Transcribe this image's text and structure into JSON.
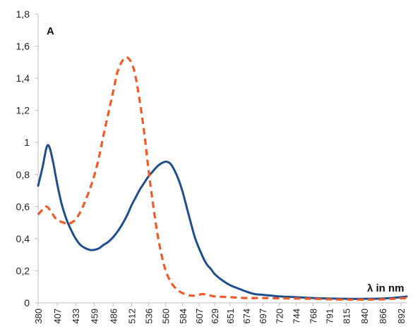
{
  "chart_data": {
    "type": "line",
    "panel_label": "A",
    "xlabel": "λ in nm",
    "ylabel": "",
    "title": "",
    "ylim": [
      0,
      1.8
    ],
    "xlim": [
      380,
      900
    ],
    "y_ticks": [
      {
        "value": 0,
        "label": "0"
      },
      {
        "value": 0.2,
        "label": "0,2"
      },
      {
        "value": 0.4,
        "label": "0,4"
      },
      {
        "value": 0.6,
        "label": "0,6"
      },
      {
        "value": 0.8,
        "label": "0,8"
      },
      {
        "value": 1.0,
        "label": "1"
      },
      {
        "value": 1.2,
        "label": "1,2"
      },
      {
        "value": 1.4,
        "label": "1,4"
      },
      {
        "value": 1.6,
        "label": "1,6"
      },
      {
        "value": 1.8,
        "label": "1,8"
      }
    ],
    "x_ticks": [
      380,
      407,
      433,
      459,
      486,
      512,
      536,
      560,
      584,
      607,
      629,
      651,
      674,
      697,
      720,
      744,
      768,
      791,
      815,
      840,
      866,
      892
    ],
    "grid": false,
    "legend": "none",
    "series": [
      {
        "style": "solid",
        "color": "#1f4e8c",
        "points": [
          [
            380,
            0.73
          ],
          [
            386,
            0.84
          ],
          [
            392,
            0.97
          ],
          [
            396,
            0.97
          ],
          [
            401,
            0.88
          ],
          [
            407,
            0.74
          ],
          [
            413,
            0.62
          ],
          [
            420,
            0.52
          ],
          [
            427,
            0.45
          ],
          [
            433,
            0.4
          ],
          [
            440,
            0.36
          ],
          [
            447,
            0.34
          ],
          [
            453,
            0.33
          ],
          [
            459,
            0.33
          ],
          [
            466,
            0.34
          ],
          [
            472,
            0.36
          ],
          [
            479,
            0.38
          ],
          [
            486,
            0.41
          ],
          [
            493,
            0.45
          ],
          [
            500,
            0.5
          ],
          [
            506,
            0.55
          ],
          [
            512,
            0.61
          ],
          [
            518,
            0.66
          ],
          [
            524,
            0.71
          ],
          [
            530,
            0.75
          ],
          [
            536,
            0.79
          ],
          [
            542,
            0.82
          ],
          [
            548,
            0.85
          ],
          [
            554,
            0.87
          ],
          [
            560,
            0.88
          ],
          [
            566,
            0.87
          ],
          [
            572,
            0.83
          ],
          [
            578,
            0.77
          ],
          [
            584,
            0.69
          ],
          [
            590,
            0.59
          ],
          [
            596,
            0.49
          ],
          [
            601,
            0.41
          ],
          [
            607,
            0.34
          ],
          [
            613,
            0.28
          ],
          [
            618,
            0.24
          ],
          [
            624,
            0.21
          ],
          [
            629,
            0.18
          ],
          [
            640,
            0.14
          ],
          [
            651,
            0.11
          ],
          [
            662,
            0.09
          ],
          [
            674,
            0.07
          ],
          [
            685,
            0.055
          ],
          [
            697,
            0.05
          ],
          [
            709,
            0.045
          ],
          [
            720,
            0.04
          ],
          [
            744,
            0.035
          ],
          [
            768,
            0.03
          ],
          [
            791,
            0.027
          ],
          [
            815,
            0.025
          ],
          [
            840,
            0.025
          ],
          [
            866,
            0.027
          ],
          [
            892,
            0.035
          ],
          [
            900,
            0.04
          ]
        ]
      },
      {
        "style": "dashed",
        "color": "#f05a28",
        "points": [
          [
            380,
            0.55
          ],
          [
            386,
            0.58
          ],
          [
            392,
            0.6
          ],
          [
            398,
            0.57
          ],
          [
            404,
            0.53
          ],
          [
            410,
            0.51
          ],
          [
            416,
            0.5
          ],
          [
            421,
            0.49
          ],
          [
            427,
            0.5
          ],
          [
            433,
            0.52
          ],
          [
            440,
            0.57
          ],
          [
            446,
            0.63
          ],
          [
            453,
            0.71
          ],
          [
            459,
            0.79
          ],
          [
            466,
            0.91
          ],
          [
            472,
            1.04
          ],
          [
            479,
            1.18
          ],
          [
            486,
            1.32
          ],
          [
            492,
            1.44
          ],
          [
            499,
            1.51
          ],
          [
            505,
            1.53
          ],
          [
            510,
            1.51
          ],
          [
            514,
            1.47
          ],
          [
            518,
            1.4
          ],
          [
            524,
            1.24
          ],
          [
            530,
            1.05
          ],
          [
            536,
            0.82
          ],
          [
            542,
            0.62
          ],
          [
            548,
            0.44
          ],
          [
            554,
            0.3
          ],
          [
            560,
            0.2
          ],
          [
            566,
            0.14
          ],
          [
            572,
            0.1
          ],
          [
            578,
            0.075
          ],
          [
            584,
            0.06
          ],
          [
            590,
            0.05
          ],
          [
            596,
            0.045
          ],
          [
            601,
            0.045
          ],
          [
            607,
            0.05
          ],
          [
            612,
            0.055
          ],
          [
            618,
            0.05
          ],
          [
            624,
            0.045
          ],
          [
            629,
            0.04
          ],
          [
            651,
            0.035
          ],
          [
            674,
            0.03
          ],
          [
            697,
            0.03
          ],
          [
            720,
            0.028
          ],
          [
            744,
            0.027
          ],
          [
            768,
            0.025
          ],
          [
            791,
            0.022
          ],
          [
            815,
            0.02
          ],
          [
            840,
            0.02
          ],
          [
            866,
            0.022
          ],
          [
            892,
            0.028
          ],
          [
            900,
            0.03
          ]
        ]
      }
    ]
  }
}
